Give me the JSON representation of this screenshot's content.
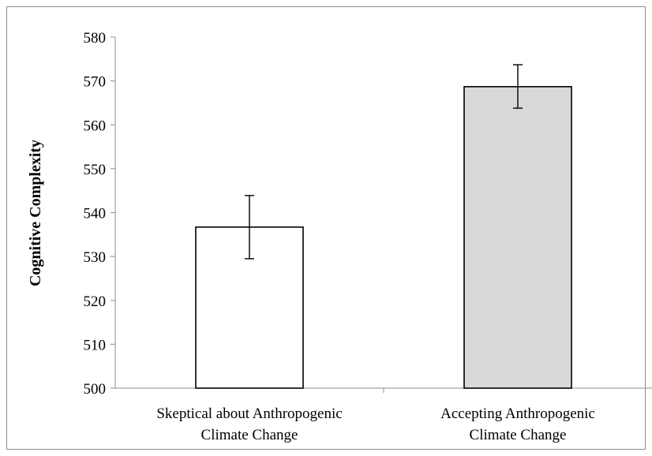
{
  "chart_data": {
    "type": "bar",
    "categories": [
      [
        "Skeptical about Anthropogenic",
        "Climate Change"
      ],
      [
        "Accepting Anthropogenic",
        "Climate Change"
      ]
    ],
    "values": [
      536.7,
      568.7
    ],
    "error_low": [
      529.5,
      563.8
    ],
    "error_high": [
      543.9,
      573.7
    ],
    "bar_colors": [
      "#ffffff",
      "#d9d9d9"
    ],
    "ylabel": "Cognitive Complexity",
    "xlabel": "",
    "ylim": [
      500,
      580
    ],
    "yticks": [
      500,
      510,
      520,
      530,
      540,
      550,
      560,
      570,
      580
    ],
    "grid": false,
    "legend": "none"
  }
}
